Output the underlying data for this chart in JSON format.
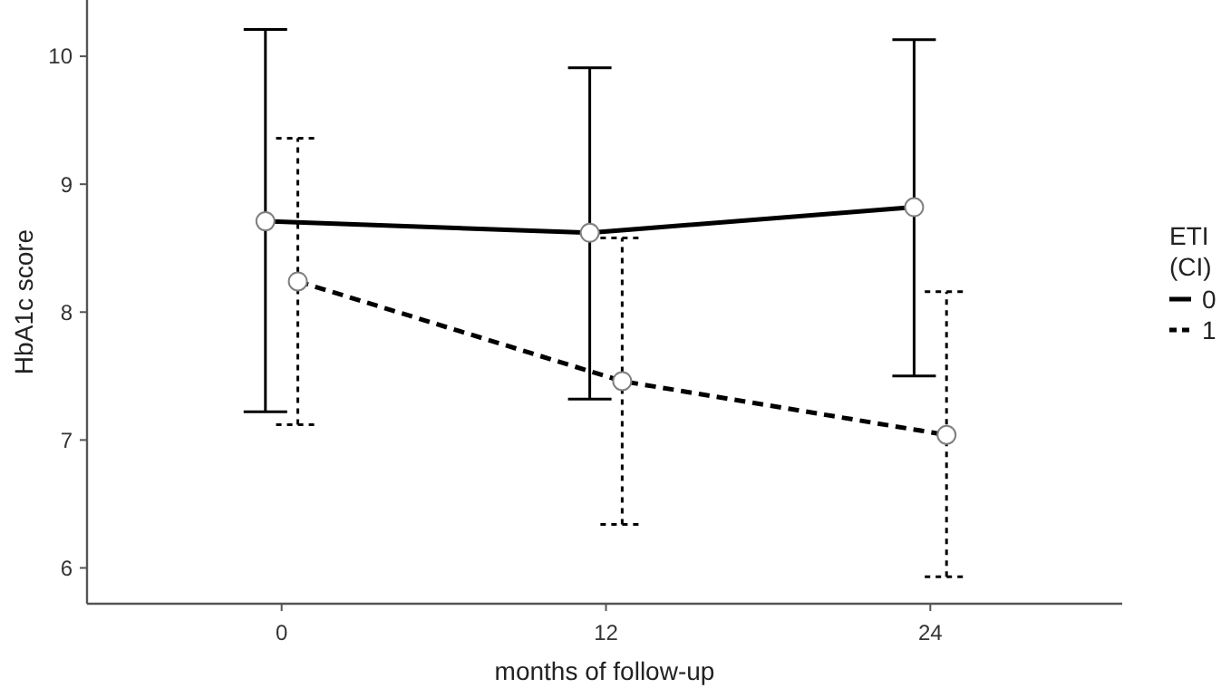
{
  "chart_data": {
    "type": "line",
    "xlabel": "months of follow-up",
    "ylabel": "HbA1c score",
    "legend_title": "ETI\n(CI)",
    "legend": "right",
    "marker": "circle",
    "grid": false,
    "xlim": [
      -7.2,
      31.1
    ],
    "xticks": [
      0,
      12,
      24
    ],
    "ylim": [
      5.72,
      10.44
    ],
    "yticks": [
      6,
      7,
      8,
      9,
      10
    ],
    "series": [
      {
        "name": "0",
        "color": "#000000",
        "line_style": "solid",
        "x": [
          -0.6,
          11.4,
          23.4
        ],
        "values": [
          8.71,
          8.62,
          8.82
        ],
        "errors": [
          [
            7.22,
            10.21
          ],
          [
            7.32,
            9.91
          ],
          [
            7.5,
            10.13
          ]
        ]
      },
      {
        "name": "1",
        "color": "#000000",
        "line_style": "dashed",
        "x": [
          0.6,
          12.6,
          24.6
        ],
        "values": [
          8.24,
          7.46,
          7.04
        ],
        "errors": [
          [
            7.12,
            9.36
          ],
          [
            6.34,
            8.58
          ],
          [
            5.93,
            8.16
          ]
        ]
      }
    ]
  }
}
